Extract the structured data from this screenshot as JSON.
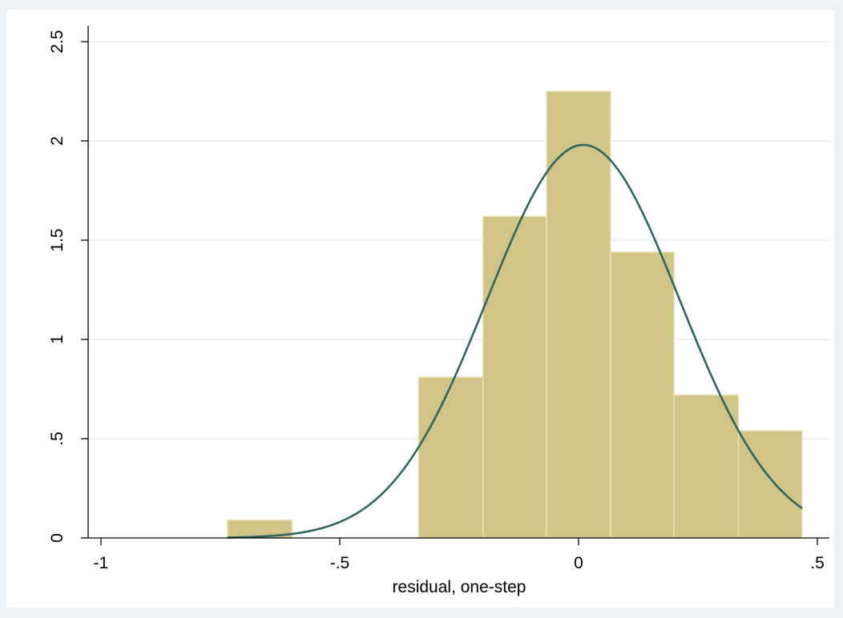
{
  "chart_data": {
    "type": "bar",
    "xlabel": "residual, one-step",
    "ylabel": "",
    "xlim": [
      -1.0,
      0.5
    ],
    "ylim": [
      0,
      2.5
    ],
    "x_ticks": [
      -1,
      -0.5,
      0,
      0.5
    ],
    "x_tick_labels": [
      "-1",
      "-.5",
      "0",
      ".5"
    ],
    "y_ticks": [
      0,
      0.5,
      1,
      1.5,
      2,
      2.5
    ],
    "y_tick_labels": [
      "0",
      ".5",
      "1",
      "1.5",
      "2",
      "2.5"
    ],
    "grid": true,
    "bins": [
      {
        "start": -0.735,
        "end": -0.6,
        "density": 0.09
      },
      {
        "start": -0.6,
        "end": -0.335,
        "density": 0
      },
      {
        "start": -0.335,
        "end": -0.2,
        "density": 0.81
      },
      {
        "start": -0.2,
        "end": -0.067,
        "density": 1.62
      },
      {
        "start": -0.067,
        "end": 0.067,
        "density": 2.25
      },
      {
        "start": 0.067,
        "end": 0.2,
        "density": 1.44
      },
      {
        "start": 0.2,
        "end": 0.335,
        "density": 0.72
      },
      {
        "start": 0.335,
        "end": 0.468,
        "density": 0.54
      }
    ],
    "normal_curve": {
      "mean": 0.01,
      "sd": 0.2015,
      "x_range": [
        -0.735,
        0.468
      ]
    },
    "colors": {
      "bar_fill": "#d0c486",
      "bar_stroke": "#e9e2b9",
      "curve": "#2e6661",
      "grid": "#e6eeef",
      "outer_background": "#eaf2f3",
      "plot_background": "#ffffff"
    }
  }
}
